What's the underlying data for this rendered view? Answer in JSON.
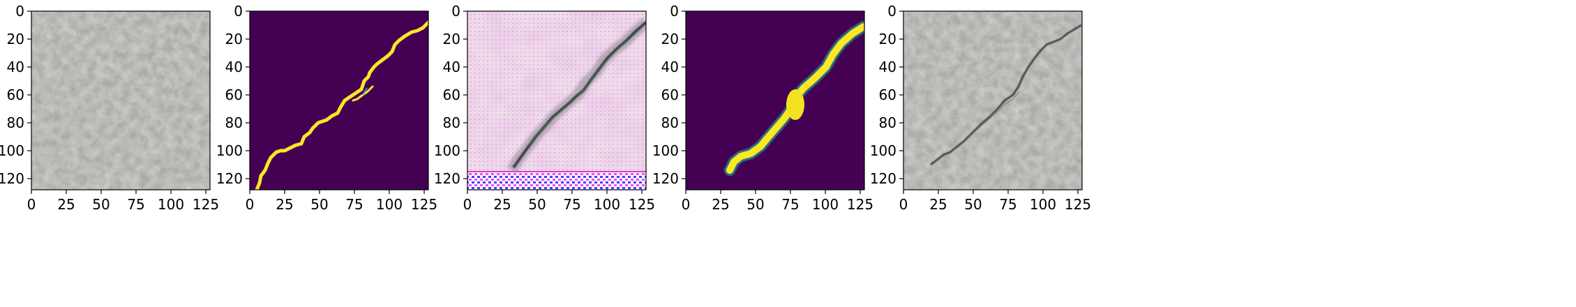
{
  "figure": {
    "panels": [
      {
        "id": "p1",
        "kind": "concrete"
      },
      {
        "id": "p2",
        "kind": "mask"
      },
      {
        "id": "p3",
        "kind": "generated"
      },
      {
        "id": "p4",
        "kind": "prediction"
      },
      {
        "id": "p5",
        "kind": "overlay"
      }
    ],
    "axes": {
      "x_ticks": [
        "0",
        "25",
        "50",
        "75",
        "100",
        "125"
      ],
      "y_ticks": [
        "0",
        "20",
        "40",
        "60",
        "80",
        "100",
        "120"
      ],
      "x_values": [
        0,
        25,
        50,
        75,
        100,
        125
      ],
      "y_values": [
        0,
        20,
        40,
        60,
        80,
        100,
        120
      ],
      "range": [
        0,
        128
      ]
    },
    "colors": {
      "concrete": "#a9aaa6",
      "mask_bg": "#440154",
      "mask_fg": "#fde725",
      "generated_bg": "#e6c9df",
      "crack_dark": "#4a4a4a"
    }
  }
}
